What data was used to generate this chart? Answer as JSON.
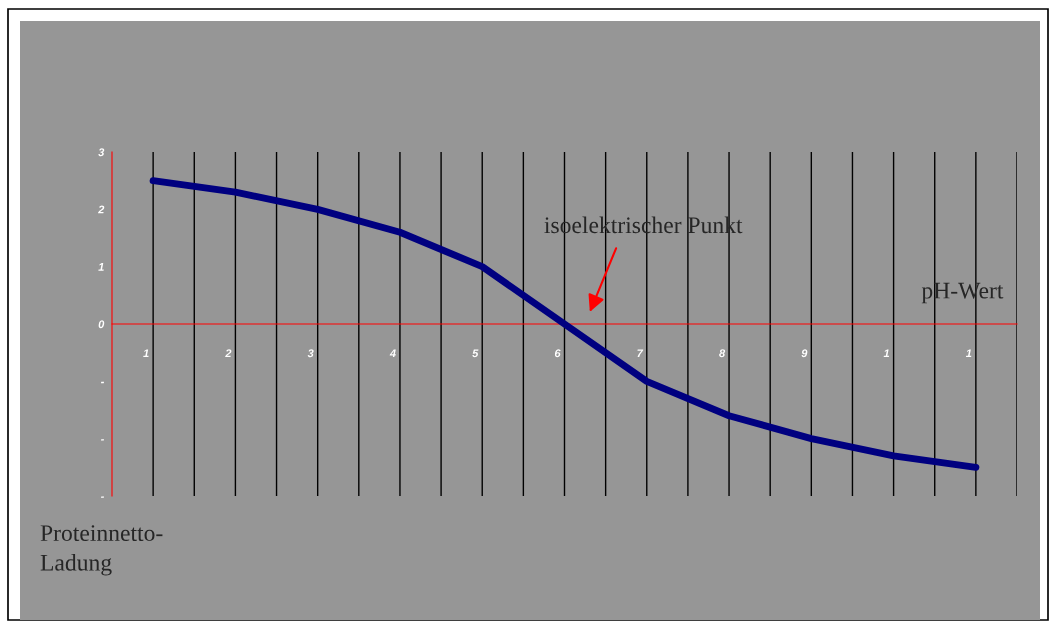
{
  "chart_data": {
    "type": "line",
    "xlabel": "pH-Wert",
    "ylabel": "Proteinnetto-\nLadung",
    "annotations": [
      "isoelektrischer Punkt"
    ],
    "categories": [
      "1",
      "2",
      "3",
      "4",
      "5",
      "6",
      "7",
      "8",
      "9",
      "1",
      "1"
    ],
    "series": [
      {
        "color": "#000080",
        "values": [
          2.5,
          2.3,
          2.0,
          1.6,
          1.0,
          0,
          -1.0,
          -1.6,
          -2.0,
          -2.3,
          -2.5
        ]
      }
    ],
    "ylim": [
      -3,
      3
    ],
    "yticks": [
      3,
      2,
      1,
      0,
      {
        "value": -1,
        "label": "-"
      },
      {
        "value": -2,
        "label": "-"
      },
      {
        "value": -3,
        "label": "-"
      }
    ],
    "grid": "x",
    "marker": "none",
    "line_style": "solid"
  }
}
